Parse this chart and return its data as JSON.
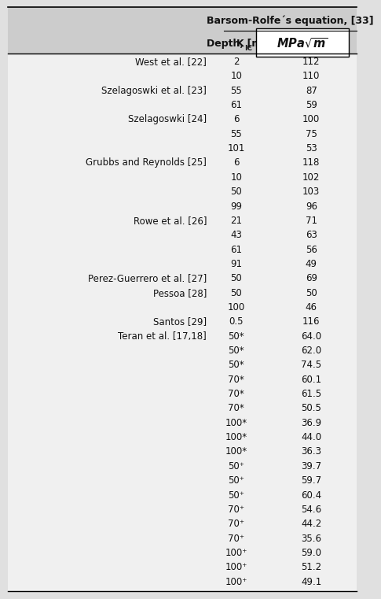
{
  "header_col2_line1": "Barsom-Rolfe´s equation, [33]",
  "rows": [
    {
      "author": "West et al. [22]",
      "depth": "2",
      "kic": "112"
    },
    {
      "author": "",
      "depth": "10",
      "kic": "110"
    },
    {
      "author": "Szelagoswki et al. [23]",
      "depth": "55",
      "kic": "87"
    },
    {
      "author": "",
      "depth": "61",
      "kic": "59"
    },
    {
      "author": "Szelagoswki [24]",
      "depth": "6",
      "kic": "100"
    },
    {
      "author": "",
      "depth": "55",
      "kic": "75"
    },
    {
      "author": "",
      "depth": "101",
      "kic": "53"
    },
    {
      "author": "Grubbs and Reynolds [25]",
      "depth": "6",
      "kic": "118"
    },
    {
      "author": "",
      "depth": "10",
      "kic": "102"
    },
    {
      "author": "",
      "depth": "50",
      "kic": "103"
    },
    {
      "author": "",
      "depth": "99",
      "kic": "96"
    },
    {
      "author": "Rowe et al. [26]",
      "depth": "21",
      "kic": "71"
    },
    {
      "author": "",
      "depth": "43",
      "kic": "63"
    },
    {
      "author": "",
      "depth": "61",
      "kic": "56"
    },
    {
      "author": "",
      "depth": "91",
      "kic": "49"
    },
    {
      "author": "Perez-Guerrero et al. [27]",
      "depth": "50",
      "kic": "69"
    },
    {
      "author": "Pessoa [28]",
      "depth": "50",
      "kic": "50"
    },
    {
      "author": "",
      "depth": "100",
      "kic": "46"
    },
    {
      "author": "Santos [29]",
      "depth": "0.5",
      "kic": "116"
    },
    {
      "author": "Teran et al. [17,18]",
      "depth": "50*",
      "kic": "64.0"
    },
    {
      "author": "",
      "depth": "50*",
      "kic": "62.0"
    },
    {
      "author": "",
      "depth": "50*",
      "kic": "74.5"
    },
    {
      "author": "",
      "depth": "70*",
      "kic": "60.1"
    },
    {
      "author": "",
      "depth": "70*",
      "kic": "61.5"
    },
    {
      "author": "",
      "depth": "70*",
      "kic": "50.5"
    },
    {
      "author": "",
      "depth": "100*",
      "kic": "36.9"
    },
    {
      "author": "",
      "depth": "100*",
      "kic": "44.0"
    },
    {
      "author": "",
      "depth": "100*",
      "kic": "36.3"
    },
    {
      "author": "",
      "depth": "50⁺",
      "kic": "39.7"
    },
    {
      "author": "",
      "depth": "50⁺",
      "kic": "59.7"
    },
    {
      "author": "",
      "depth": "50⁺",
      "kic": "60.4"
    },
    {
      "author": "",
      "depth": "70⁺",
      "kic": "54.6"
    },
    {
      "author": "",
      "depth": "70⁺",
      "kic": "44.2"
    },
    {
      "author": "",
      "depth": "70⁺",
      "kic": "35.6"
    },
    {
      "author": "",
      "depth": "100⁺",
      "kic": "59.0"
    },
    {
      "author": "",
      "depth": "100⁺",
      "kic": "51.2"
    },
    {
      "author": "",
      "depth": "100⁺",
      "kic": "49.1"
    }
  ],
  "bg_color": "#e0e0e0",
  "header_bg": "#cccccc",
  "row_bg": "#f0f0f0",
  "text_color": "#111111",
  "font_size": 8.5,
  "header_font_size": 9.0
}
